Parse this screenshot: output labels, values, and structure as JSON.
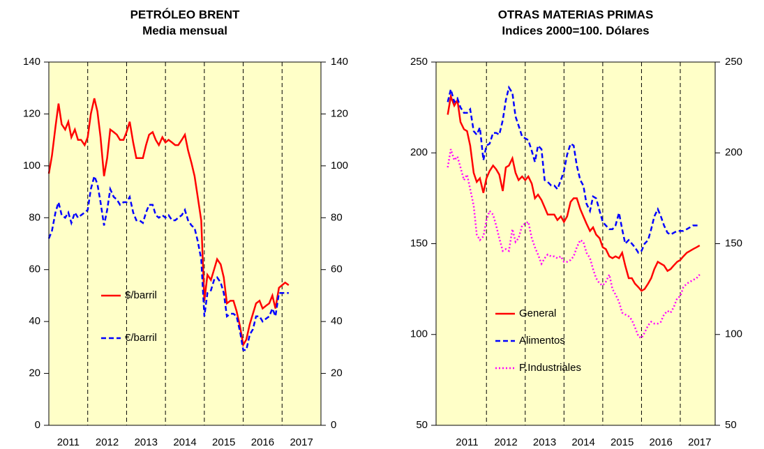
{
  "chart_data": [
    {
      "type": "line",
      "title": "PETRÓLEO BRENT",
      "subtitle": "Media mensual",
      "x": [
        2011.0,
        2011.08,
        2011.17,
        2011.25,
        2011.33,
        2011.42,
        2011.5,
        2011.58,
        2011.67,
        2011.75,
        2011.83,
        2011.92,
        2012.0,
        2012.08,
        2012.17,
        2012.25,
        2012.33,
        2012.42,
        2012.5,
        2012.58,
        2012.67,
        2012.75,
        2012.83,
        2012.92,
        2013.0,
        2013.08,
        2013.17,
        2013.25,
        2013.33,
        2013.42,
        2013.5,
        2013.58,
        2013.67,
        2013.75,
        2013.83,
        2013.92,
        2014.0,
        2014.08,
        2014.17,
        2014.25,
        2014.33,
        2014.42,
        2014.5,
        2014.58,
        2014.67,
        2014.75,
        2014.83,
        2014.92,
        2015.0,
        2015.08,
        2015.17,
        2015.25,
        2015.33,
        2015.42,
        2015.5,
        2015.58,
        2015.67,
        2015.75,
        2015.83,
        2015.92,
        2016.0,
        2016.08,
        2016.17,
        2016.25,
        2016.33,
        2016.42,
        2016.5,
        2016.58,
        2016.67,
        2016.75,
        2016.83,
        2016.92,
        2017.0,
        2017.08,
        2017.17
      ],
      "series": [
        {
          "name": "$/barril",
          "color": "#ff0000",
          "dash": "solid",
          "values": [
            97,
            104,
            115,
            124,
            116,
            114,
            117,
            111,
            114,
            110,
            110,
            108,
            111,
            120,
            126,
            121,
            111,
            96,
            103,
            114,
            113,
            112,
            110,
            110,
            113,
            117,
            109,
            103,
            103,
            103,
            108,
            112,
            113,
            110,
            108,
            111,
            109,
            110,
            109,
            108,
            108,
            110,
            112,
            106,
            101,
            96,
            88,
            79,
            48,
            58,
            56,
            60,
            64,
            62,
            57,
            47,
            48,
            48,
            44,
            38,
            31,
            33,
            39,
            43,
            47,
            48,
            45,
            46,
            47,
            50,
            45,
            53,
            54,
            55,
            54
          ]
        },
        {
          "name": "€/barril",
          "color": "#0000ff",
          "dash": "dashed",
          "values": [
            72,
            75,
            82,
            86,
            81,
            80,
            82,
            78,
            82,
            80,
            81,
            82,
            83,
            91,
            96,
            93,
            86,
            77,
            83,
            91,
            88,
            87,
            85,
            86,
            86,
            88,
            82,
            79,
            79,
            78,
            82,
            85,
            85,
            81,
            80,
            81,
            80,
            81,
            79,
            79,
            80,
            81,
            83,
            79,
            77,
            76,
            71,
            64,
            42,
            51,
            52,
            56,
            57,
            55,
            51,
            42,
            43,
            43,
            42,
            36,
            29,
            29,
            35,
            37,
            42,
            42,
            40,
            41,
            42,
            45,
            42,
            51,
            51,
            51,
            51
          ]
        }
      ],
      "xlim": [
        2011,
        2018
      ],
      "xticks": [
        {
          "value": 2011.5,
          "label": "2011"
        },
        {
          "value": 2012.5,
          "label": "2012"
        },
        {
          "value": 2013.5,
          "label": "2013"
        },
        {
          "value": 2014.5,
          "label": "2014"
        },
        {
          "value": 2015.5,
          "label": "2015"
        },
        {
          "value": 2016.5,
          "label": "2016"
        },
        {
          "value": 2017.5,
          "label": "2017"
        }
      ],
      "xgrid": [
        2012,
        2013,
        2014,
        2015,
        2016,
        2017
      ],
      "ylim": [
        0,
        140
      ],
      "yticks": [
        0,
        20,
        40,
        60,
        80,
        100,
        120,
        140
      ],
      "legend": "left"
    },
    {
      "type": "line",
      "title": "OTRAS MATERIAS PRIMAS",
      "subtitle": "Indices 2000=100. Dólares",
      "x": [
        2011.0,
        2011.08,
        2011.17,
        2011.25,
        2011.33,
        2011.42,
        2011.5,
        2011.58,
        2011.67,
        2011.75,
        2011.83,
        2011.92,
        2012.0,
        2012.08,
        2012.17,
        2012.25,
        2012.33,
        2012.42,
        2012.5,
        2012.58,
        2012.67,
        2012.75,
        2012.83,
        2012.92,
        2013.0,
        2013.08,
        2013.17,
        2013.25,
        2013.33,
        2013.42,
        2013.5,
        2013.58,
        2013.67,
        2013.75,
        2013.83,
        2013.92,
        2014.0,
        2014.08,
        2014.17,
        2014.25,
        2014.33,
        2014.42,
        2014.5,
        2014.58,
        2014.67,
        2014.75,
        2014.83,
        2014.92,
        2015.0,
        2015.08,
        2015.17,
        2015.25,
        2015.33,
        2015.42,
        2015.5,
        2015.58,
        2015.67,
        2015.75,
        2015.83,
        2015.92,
        2016.0,
        2016.08,
        2016.17,
        2016.25,
        2016.33,
        2016.42,
        2016.5,
        2016.58,
        2016.67,
        2016.75,
        2016.83,
        2016.92,
        2017.0,
        2017.08,
        2017.17,
        2017.25,
        2017.33,
        2017.42,
        2017.5
      ],
      "series": [
        {
          "name": "General",
          "color": "#ff0000",
          "dash": "solid",
          "values": [
            221,
            231,
            226,
            229,
            217,
            213,
            212,
            204,
            189,
            184,
            186,
            178,
            186,
            190,
            193,
            191,
            188,
            179,
            192,
            193,
            197,
            189,
            185,
            187,
            185,
            187,
            183,
            175,
            177,
            174,
            170,
            166,
            166,
            166,
            163,
            165,
            162,
            165,
            173,
            175,
            175,
            169,
            165,
            161,
            157,
            159,
            155,
            153,
            148,
            147,
            143,
            142,
            143,
            142,
            145,
            138,
            131,
            131,
            128,
            126,
            124,
            125,
            128,
            131,
            136,
            140,
            139,
            138,
            135,
            136,
            138,
            140,
            141,
            143,
            145,
            146,
            147,
            148,
            149
          ]
        },
        {
          "name": "Alimentos",
          "color": "#0000ff",
          "dash": "dashed",
          "values": [
            228,
            235,
            228,
            230,
            225,
            222,
            222,
            224,
            212,
            210,
            214,
            196,
            204,
            205,
            211,
            211,
            210,
            218,
            229,
            236,
            233,
            220,
            215,
            209,
            208,
            207,
            201,
            195,
            204,
            202,
            185,
            184,
            182,
            182,
            180,
            185,
            190,
            199,
            205,
            204,
            193,
            185,
            182,
            172,
            168,
            176,
            175,
            168,
            162,
            160,
            158,
            158,
            160,
            167,
            158,
            150,
            152,
            150,
            148,
            145,
            146,
            150,
            152,
            158,
            165,
            169,
            165,
            160,
            156,
            155,
            156,
            157,
            157,
            157,
            158,
            159,
            160,
            160,
            160
          ]
        },
        {
          "name": "P.Industriales",
          "color": "#ff00ff",
          "dash": "dotted",
          "values": [
            192,
            202,
            196,
            198,
            192,
            185,
            188,
            180,
            171,
            155,
            152,
            154,
            163,
            168,
            166,
            160,
            153,
            146,
            147,
            146,
            158,
            151,
            153,
            160,
            161,
            162,
            153,
            148,
            144,
            139,
            142,
            144,
            143,
            143,
            142,
            143,
            140,
            140,
            141,
            143,
            148,
            152,
            151,
            145,
            142,
            136,
            131,
            128,
            127,
            129,
            133,
            125,
            122,
            118,
            112,
            111,
            110,
            108,
            104,
            99,
            98,
            101,
            105,
            107,
            106,
            106,
            107,
            111,
            113,
            112,
            115,
            120,
            121,
            126,
            128,
            129,
            130,
            131,
            133
          ]
        }
      ],
      "xlim": [
        2010.7,
        2017.9
      ],
      "xticks": [
        {
          "value": 2011.5,
          "label": "2011"
        },
        {
          "value": 2012.5,
          "label": "2012"
        },
        {
          "value": 2013.5,
          "label": "2013"
        },
        {
          "value": 2014.5,
          "label": "2014"
        },
        {
          "value": 2015.5,
          "label": "2015"
        },
        {
          "value": 2016.5,
          "label": "2016"
        },
        {
          "value": 2017.5,
          "label": "2017"
        }
      ],
      "xgrid": [
        2012,
        2013,
        2014,
        2015,
        2016,
        2017
      ],
      "ylim": [
        50,
        250
      ],
      "yticks": [
        50,
        100,
        150,
        200,
        250
      ],
      "legend": "left"
    }
  ]
}
